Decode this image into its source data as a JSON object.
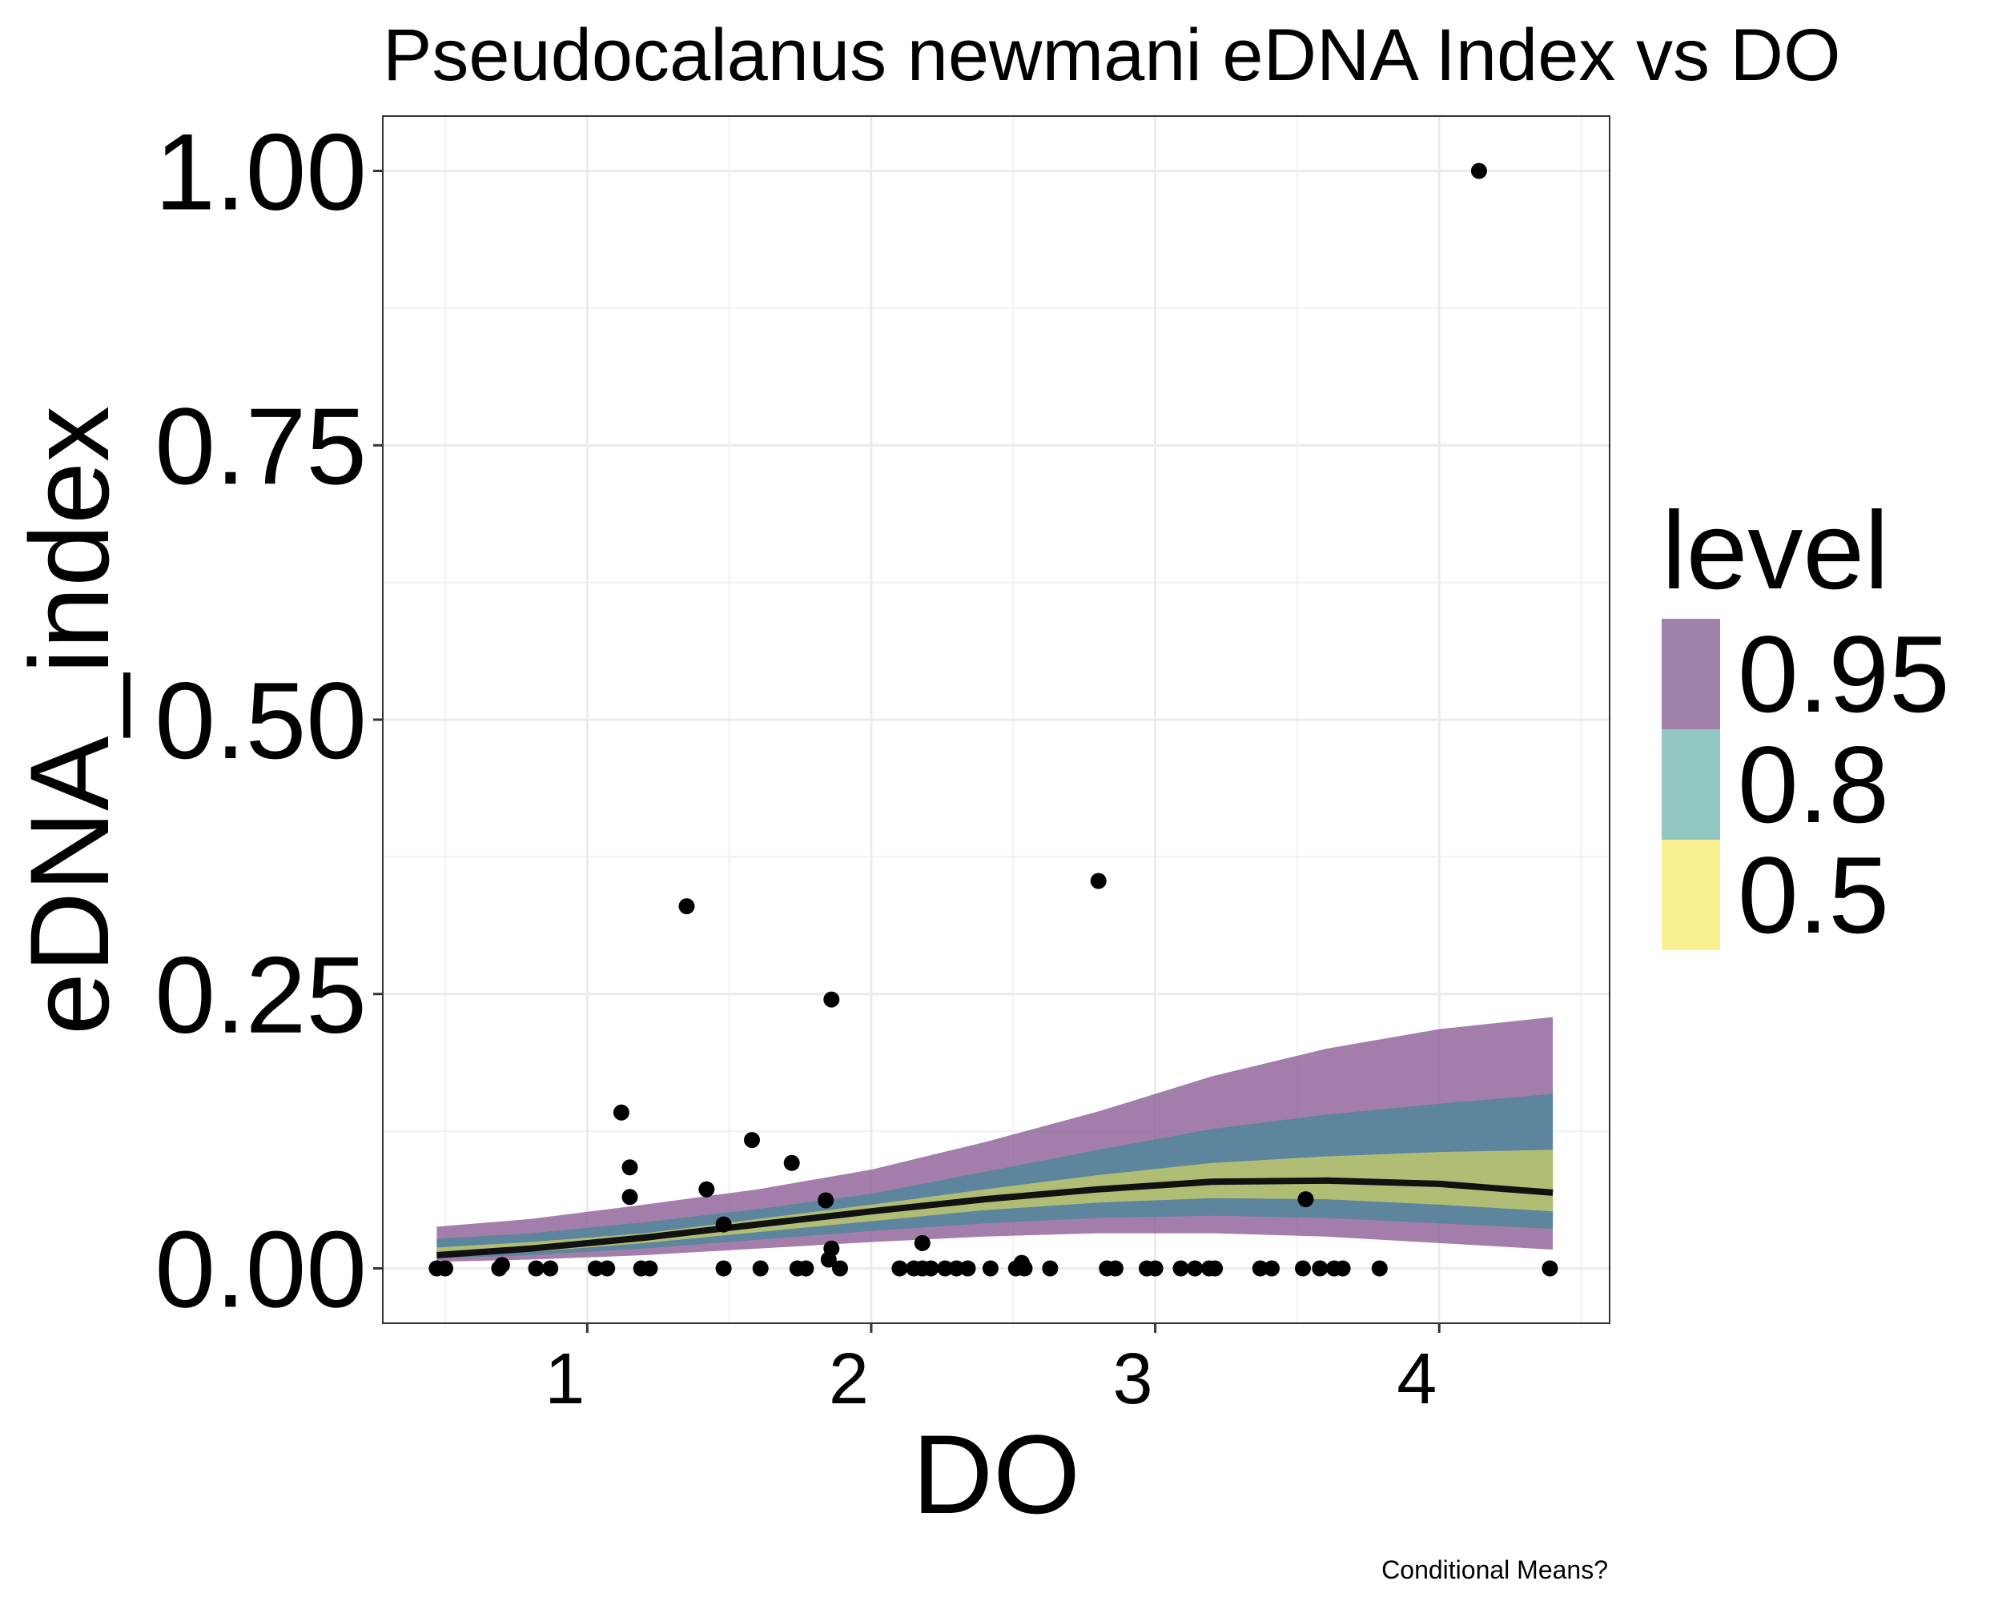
{
  "chart_data": {
    "type": "line",
    "title": "Pseudocalanus newmani eDNA Index vs DO",
    "xlabel": "DO",
    "ylabel": "eDNA_index",
    "caption": "Conditional Means?",
    "xlim": [
      0.28,
      4.6
    ],
    "ylim": [
      -0.05,
      1.05
    ],
    "x_ticks": [
      1,
      2,
      3,
      4
    ],
    "x_tick_labels": [
      "1",
      "2",
      "3",
      "4"
    ],
    "y_ticks": [
      0,
      0.25,
      0.5,
      0.75,
      1.0
    ],
    "y_tick_labels": [
      "0.00",
      "0.25",
      "0.50",
      "0.75",
      "1.00"
    ],
    "grid": true,
    "legend": {
      "title": "level",
      "position": "right",
      "entries": [
        {
          "label": "0.95",
          "color": "#a07fa8"
        },
        {
          "label": "0.8",
          "color": "#93c7c2"
        },
        {
          "label": "0.5",
          "color": "#fbf192"
        }
      ]
    },
    "colors": {
      "band_95": "#8b5a93",
      "band_80": "#2f8a94",
      "band_50": "#e6e35a",
      "line": "#111111",
      "points": "#000000"
    },
    "curve": {
      "x": [
        0.47,
        0.8,
        1.2,
        1.6,
        2.0,
        2.4,
        2.8,
        3.2,
        3.6,
        4.0,
        4.4
      ],
      "mean": [
        0.012,
        0.018,
        0.028,
        0.04,
        0.052,
        0.063,
        0.072,
        0.079,
        0.08,
        0.077,
        0.069
      ],
      "lo95": [
        0.006,
        0.008,
        0.012,
        0.018,
        0.024,
        0.029,
        0.032,
        0.032,
        0.029,
        0.023,
        0.017
      ],
      "hi95": [
        0.038,
        0.045,
        0.058,
        0.072,
        0.09,
        0.115,
        0.143,
        0.175,
        0.2,
        0.218,
        0.229
      ],
      "lo80": [
        0.009,
        0.012,
        0.018,
        0.026,
        0.034,
        0.041,
        0.046,
        0.048,
        0.046,
        0.041,
        0.036
      ],
      "hi80": [
        0.027,
        0.032,
        0.042,
        0.054,
        0.068,
        0.088,
        0.108,
        0.127,
        0.14,
        0.15,
        0.159
      ],
      "lo50": [
        0.011,
        0.015,
        0.023,
        0.033,
        0.043,
        0.053,
        0.06,
        0.064,
        0.063,
        0.058,
        0.052
      ],
      "hi50": [
        0.019,
        0.024,
        0.032,
        0.045,
        0.058,
        0.072,
        0.085,
        0.096,
        0.102,
        0.106,
        0.108
      ]
    },
    "points": [
      {
        "x": 0.47,
        "y": 0
      },
      {
        "x": 0.5,
        "y": 0
      },
      {
        "x": 0.69,
        "y": 0
      },
      {
        "x": 0.7,
        "y": 0.003
      },
      {
        "x": 0.82,
        "y": 0
      },
      {
        "x": 0.87,
        "y": 0
      },
      {
        "x": 1.03,
        "y": 0
      },
      {
        "x": 1.07,
        "y": 0
      },
      {
        "x": 1.12,
        "y": 0.142
      },
      {
        "x": 1.15,
        "y": 0.092
      },
      {
        "x": 1.15,
        "y": 0.065
      },
      {
        "x": 1.19,
        "y": 0
      },
      {
        "x": 1.22,
        "y": 0
      },
      {
        "x": 1.35,
        "y": 0.33
      },
      {
        "x": 1.42,
        "y": 0.072
      },
      {
        "x": 1.48,
        "y": 0.04
      },
      {
        "x": 1.48,
        "y": 0
      },
      {
        "x": 1.58,
        "y": 0.117
      },
      {
        "x": 1.61,
        "y": 0
      },
      {
        "x": 1.72,
        "y": 0.096
      },
      {
        "x": 1.74,
        "y": 0
      },
      {
        "x": 1.77,
        "y": 0
      },
      {
        "x": 1.84,
        "y": 0.062
      },
      {
        "x": 1.86,
        "y": 0.245
      },
      {
        "x": 1.86,
        "y": 0.018
      },
      {
        "x": 1.85,
        "y": 0.008
      },
      {
        "x": 1.89,
        "y": 0
      },
      {
        "x": 2.1,
        "y": 0
      },
      {
        "x": 2.15,
        "y": 0
      },
      {
        "x": 2.18,
        "y": 0.023
      },
      {
        "x": 2.18,
        "y": 0
      },
      {
        "x": 2.21,
        "y": 0
      },
      {
        "x": 2.26,
        "y": 0
      },
      {
        "x": 2.3,
        "y": 0
      },
      {
        "x": 2.34,
        "y": 0
      },
      {
        "x": 2.42,
        "y": 0
      },
      {
        "x": 2.51,
        "y": 0
      },
      {
        "x": 2.53,
        "y": 0.005
      },
      {
        "x": 2.54,
        "y": 0
      },
      {
        "x": 2.63,
        "y": 0
      },
      {
        "x": 2.8,
        "y": 0.353
      },
      {
        "x": 2.83,
        "y": 0
      },
      {
        "x": 2.86,
        "y": 0
      },
      {
        "x": 2.97,
        "y": 0
      },
      {
        "x": 3.0,
        "y": 0
      },
      {
        "x": 3.09,
        "y": 0
      },
      {
        "x": 3.14,
        "y": 0
      },
      {
        "x": 3.19,
        "y": 0
      },
      {
        "x": 3.21,
        "y": 0
      },
      {
        "x": 3.37,
        "y": 0
      },
      {
        "x": 3.41,
        "y": 0
      },
      {
        "x": 3.52,
        "y": 0
      },
      {
        "x": 3.53,
        "y": 0.063
      },
      {
        "x": 3.58,
        "y": 0
      },
      {
        "x": 3.63,
        "y": 0
      },
      {
        "x": 3.66,
        "y": 0
      },
      {
        "x": 3.79,
        "y": 0
      },
      {
        "x": 4.14,
        "y": 1.0
      },
      {
        "x": 4.39,
        "y": 0
      }
    ]
  }
}
